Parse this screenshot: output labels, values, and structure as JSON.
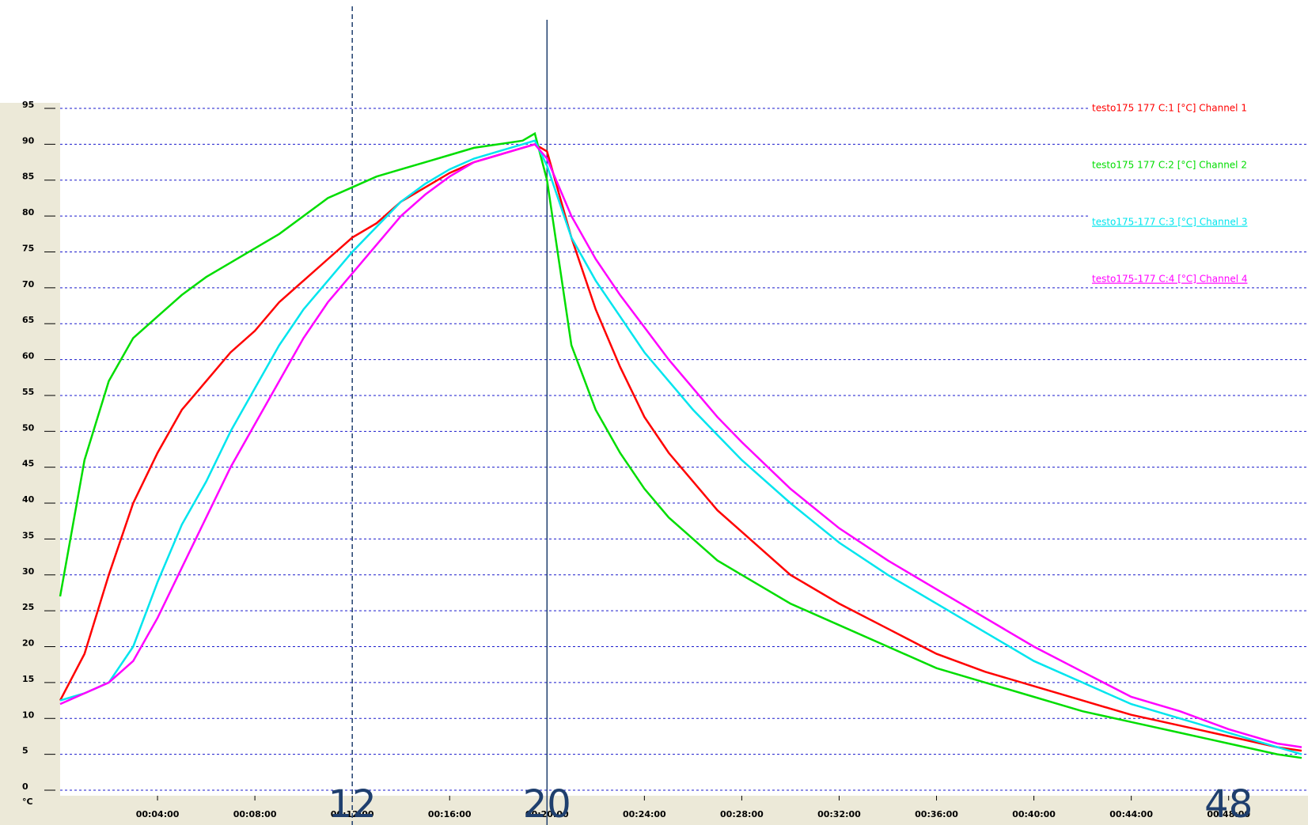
{
  "chart_data": {
    "type": "line",
    "y_label": "°C",
    "x": [
      0,
      1,
      2,
      3,
      4,
      5,
      6,
      7,
      8,
      9,
      10,
      11,
      12,
      13,
      14,
      15,
      16,
      17,
      18,
      19,
      19.5,
      20,
      21,
      22,
      23,
      24,
      25,
      26,
      27,
      28,
      30,
      32,
      34,
      36,
      38,
      40,
      42,
      44,
      46,
      48,
      50,
      51
    ],
    "series": [
      {
        "name": "testo175 177 C:1 [°C] Channel 1",
        "color": "#ff0000",
        "values": [
          12.5,
          19,
          30,
          40,
          47,
          53,
          57,
          61,
          64,
          68,
          71,
          74,
          77,
          79,
          82,
          84,
          86,
          87.5,
          88.5,
          89.5,
          90,
          89,
          77,
          67,
          59,
          52,
          47,
          43,
          39,
          36,
          30,
          26,
          22.5,
          19,
          16.5,
          14.5,
          12.5,
          10.5,
          9,
          7.5,
          6,
          5.5
        ]
      },
      {
        "name": "testo175 177 C:2 [°C] Channel 2",
        "color": "#00dd00",
        "values": [
          27,
          46,
          57,
          63,
          66,
          69,
          71.5,
          73.5,
          75.5,
          77.5,
          80,
          82.5,
          84,
          85.5,
          86.5,
          87.5,
          88.5,
          89.5,
          90,
          90.5,
          91.5,
          85,
          62,
          53,
          47,
          42,
          38,
          35,
          32,
          30,
          26,
          23,
          20,
          17,
          15,
          13,
          11,
          9.5,
          8,
          6.5,
          5,
          4.5
        ]
      },
      {
        "name": "testo175-177 C:3 [°C] Channel 3",
        "color": "#00e5ee",
        "values": [
          12.5,
          13.5,
          15,
          20,
          29,
          37,
          43,
          50,
          56,
          62,
          67,
          71,
          75,
          78.5,
          82,
          84.5,
          86.5,
          88,
          89,
          90,
          90.5,
          87,
          77,
          71,
          66,
          61,
          57,
          53,
          49.5,
          46,
          40,
          34.5,
          30,
          26,
          22,
          18,
          15,
          12,
          10,
          8,
          6,
          5
        ]
      },
      {
        "name": "testo175-177 C:4 [°C] Channel 4",
        "color": "#ff00ff",
        "values": [
          12,
          13.5,
          15,
          18,
          24,
          31,
          38,
          45,
          51,
          57,
          63,
          68,
          72,
          76,
          80,
          83,
          85.5,
          87.5,
          88.5,
          89.5,
          90,
          88,
          80,
          74,
          69,
          64.5,
          60,
          56,
          52,
          48.5,
          42,
          36.5,
          32,
          28,
          24,
          20,
          16.5,
          13,
          11,
          8.5,
          6.5,
          6
        ]
      }
    ],
    "xlim": [
      0,
      51
    ],
    "xticks": [
      {
        "value": 4,
        "label": "00:04:00"
      },
      {
        "value": 8,
        "label": "00:08:00"
      },
      {
        "value": 12,
        "label": "00:12:00"
      },
      {
        "value": 16,
        "label": "00:16:00"
      },
      {
        "value": 20,
        "label": "00:20:00"
      },
      {
        "value": 24,
        "label": "00:24:00"
      },
      {
        "value": 28,
        "label": "00:28:00"
      },
      {
        "value": 32,
        "label": "00:32:00"
      },
      {
        "value": 36,
        "label": "00:36:00"
      },
      {
        "value": 40,
        "label": "00:40:00"
      },
      {
        "value": 44,
        "label": "00:44:00"
      },
      {
        "value": 48,
        "label": "00:48:00"
      }
    ],
    "ylim": [
      0,
      95
    ],
    "yticks": [
      0,
      5,
      10,
      15,
      20,
      25,
      30,
      35,
      40,
      45,
      50,
      55,
      60,
      65,
      70,
      75,
      80,
      85,
      90,
      95
    ],
    "grid": true,
    "annotations": [
      {
        "text": "12",
        "x": 12,
        "line": "dashed"
      },
      {
        "text": "20",
        "x": 20,
        "line": "solid"
      },
      {
        "text": "48",
        "x": 48
      }
    ]
  }
}
